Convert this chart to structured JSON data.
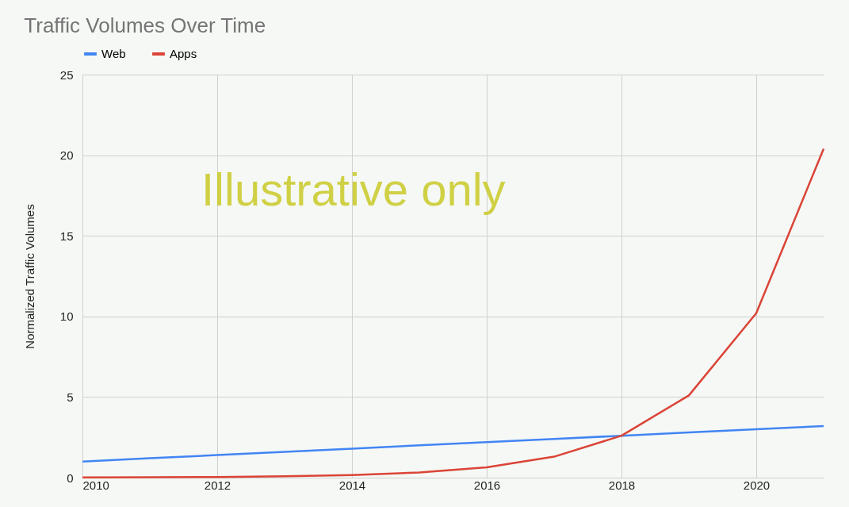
{
  "chart_data": {
    "type": "line",
    "title": "Traffic Volumes Over Time",
    "ylabel": "Normalized Traffic Volumes",
    "x": [
      2010,
      2011,
      2012,
      2013,
      2014,
      2015,
      2016,
      2017,
      2018,
      2019,
      2020,
      2021
    ],
    "series": [
      {
        "name": "Web",
        "color": "#4285f4",
        "values": [
          1.0,
          1.2,
          1.4,
          1.6,
          1.8,
          2.0,
          2.2,
          2.4,
          2.6,
          2.8,
          3.0,
          3.2
        ]
      },
      {
        "name": "Apps",
        "color": "#db4437",
        "values": [
          0.01,
          0.02,
          0.04,
          0.08,
          0.16,
          0.32,
          0.64,
          1.3,
          2.6,
          5.1,
          10.2,
          20.4
        ]
      }
    ],
    "xlim": [
      2010,
      2021
    ],
    "xticks": [
      2010,
      2012,
      2014,
      2016,
      2018,
      2020
    ],
    "ylim": [
      0,
      25
    ],
    "yticks": [
      0,
      5,
      10,
      15,
      20,
      25
    ],
    "grid": true,
    "legend": "top",
    "marker": "none",
    "line_style": "solid",
    "annotations": [
      "Illustrative only"
    ]
  }
}
